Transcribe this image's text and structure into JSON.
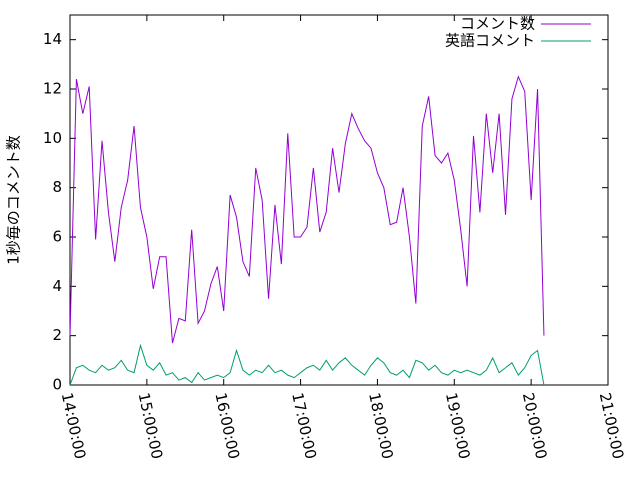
{
  "chart_data": {
    "type": "line",
    "y_label": "1秒毎のコメント数",
    "x": [
      "14:00:00",
      "14:05:00",
      "14:10:00",
      "14:15:00",
      "14:20:00",
      "14:25:00",
      "14:30:00",
      "14:35:00",
      "14:40:00",
      "14:45:00",
      "14:50:00",
      "14:55:00",
      "15:00:00",
      "15:05:00",
      "15:10:00",
      "15:15:00",
      "15:20:00",
      "15:25:00",
      "15:30:00",
      "15:35:00",
      "15:40:00",
      "15:45:00",
      "15:50:00",
      "15:55:00",
      "16:00:00",
      "16:05:00",
      "16:10:00",
      "16:15:00",
      "16:20:00",
      "16:25:00",
      "16:30:00",
      "16:35:00",
      "16:40:00",
      "16:45:00",
      "16:50:00",
      "16:55:00",
      "17:00:00",
      "17:05:00",
      "17:10:00",
      "17:15:00",
      "17:20:00",
      "17:25:00",
      "17:30:00",
      "17:35:00",
      "17:40:00",
      "17:45:00",
      "17:50:00",
      "17:55:00",
      "18:00:00",
      "18:05:00",
      "18:10:00",
      "18:15:00",
      "18:20:00",
      "18:25:00",
      "18:30:00",
      "18:35:00",
      "18:40:00",
      "18:45:00",
      "18:50:00",
      "18:55:00",
      "19:00:00",
      "19:05:00",
      "19:10:00",
      "19:15:00",
      "19:20:00",
      "19:25:00",
      "19:30:00",
      "19:35:00",
      "19:40:00",
      "19:45:00",
      "19:50:00",
      "19:55:00",
      "20:00:00",
      "20:05:00",
      "20:10:00"
    ],
    "series": [
      {
        "name": "コメント数",
        "color": "#9400d3",
        "values": [
          2.0,
          12.4,
          11.0,
          12.1,
          5.9,
          9.9,
          7.0,
          5.0,
          7.2,
          8.3,
          10.5,
          7.2,
          6.0,
          3.9,
          5.2,
          5.2,
          1.7,
          2.7,
          2.6,
          6.3,
          2.5,
          3.0,
          4.1,
          4.8,
          3.0,
          7.7,
          6.8,
          5.0,
          4.4,
          8.8,
          7.5,
          3.5,
          7.3,
          4.9,
          10.2,
          6.0,
          6.0,
          6.4,
          8.8,
          6.2,
          7.0,
          9.6,
          7.8,
          9.8,
          11.0,
          10.4,
          9.9,
          9.6,
          8.6,
          8.0,
          6.5,
          6.6,
          8.0,
          6.0,
          3.3,
          10.5,
          11.7,
          9.3,
          9.0,
          9.4,
          8.3,
          6.3,
          4.0,
          10.1,
          7.0,
          11.0,
          8.6,
          11.0,
          6.9,
          11.6,
          12.5,
          11.9,
          7.5,
          12.0,
          2.0
        ]
      },
      {
        "name": "英語コメント",
        "color": "#009e73",
        "values": [
          0,
          0.7,
          0.8,
          0.6,
          0.5,
          0.8,
          0.6,
          0.7,
          1.0,
          0.6,
          0.5,
          1.6,
          0.8,
          0.6,
          0.9,
          0.4,
          0.5,
          0.2,
          0.3,
          0.1,
          0.5,
          0.2,
          0.3,
          0.4,
          0.3,
          0.5,
          1.4,
          0.6,
          0.4,
          0.6,
          0.5,
          0.8,
          0.5,
          0.6,
          0.4,
          0.3,
          0.5,
          0.7,
          0.8,
          0.6,
          1.0,
          0.6,
          0.9,
          1.1,
          0.8,
          0.6,
          0.4,
          0.8,
          1.1,
          0.9,
          0.5,
          0.4,
          0.6,
          0.3,
          1.0,
          0.9,
          0.6,
          0.8,
          0.5,
          0.4,
          0.6,
          0.5,
          0.6,
          0.5,
          0.4,
          0.6,
          1.1,
          0.5,
          0.7,
          0.9,
          0.4,
          0.7,
          1.2,
          1.4,
          0.0
        ]
      }
    ],
    "xlim": [
      "14:00:00",
      "21:00:00"
    ],
    "xticks": [
      "14:00:00",
      "15:00:00",
      "16:00:00",
      "17:00:00",
      "18:00:00",
      "19:00:00",
      "20:00:00",
      "21:00:00"
    ],
    "ylim": [
      0,
      15
    ],
    "yticks": [
      0,
      2,
      4,
      6,
      8,
      10,
      12,
      14
    ],
    "legend": "top-right"
  }
}
